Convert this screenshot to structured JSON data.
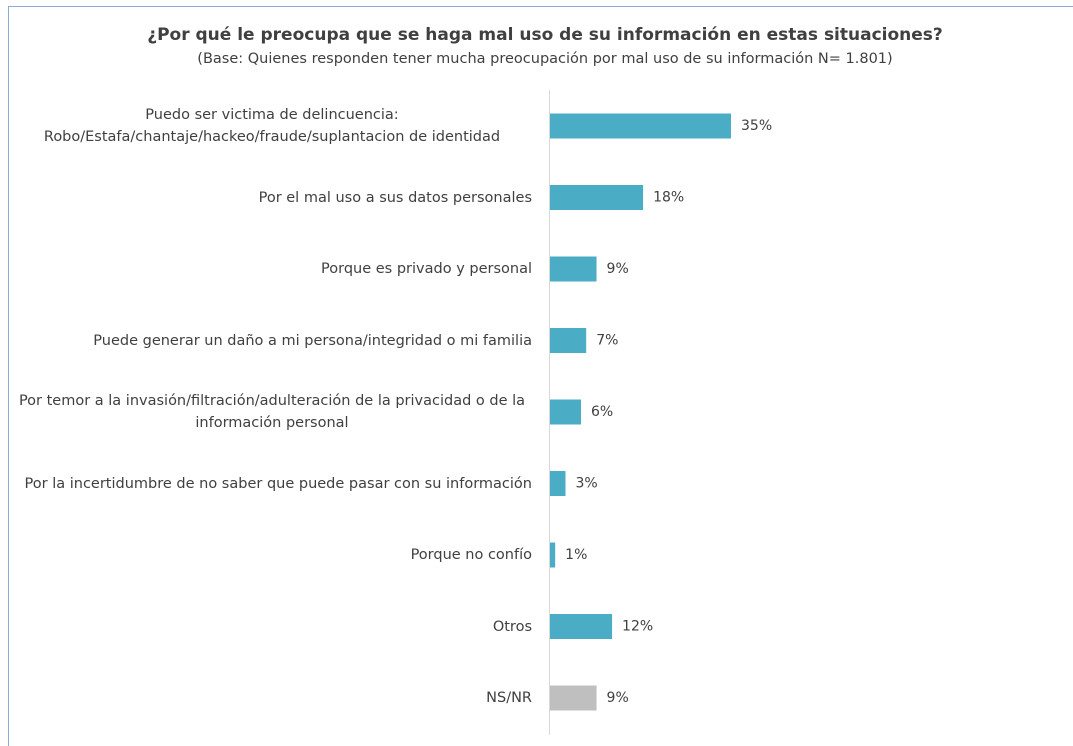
{
  "chart_data": {
    "type": "bar",
    "orientation": "horizontal",
    "title": "¿Por qué le preocupa que se haga mal uso de su información en estas situaciones?",
    "subtitle": "(Base: Quienes responden tener mucha preocupación por mal uso de su información N= 1.801)",
    "categories": [
      "Puedo ser victima de delincuencia: Robo/Estafa/chantaje/hackeo/fraude/suplantacion de identidad",
      "Por el mal uso a sus datos personales",
      "Porque es privado y personal",
      "Puede generar un daño a mi persona/integridad o mi familia",
      "Por temor a la invasión/filtración/adulteración de la privacidad o de la información personal",
      "Por la incertidumbre de no saber que puede pasar con su información",
      "Porque no confío",
      "Otros",
      "NS/NR"
    ],
    "values": [
      35,
      18,
      9,
      7,
      6,
      3,
      1,
      12,
      9
    ],
    "value_labels": [
      "35%",
      "18%",
      "9%",
      "7%",
      "6%",
      "3%",
      "1%",
      "12%",
      "9%"
    ],
    "colors": [
      "#4bacc6",
      "#4bacc6",
      "#4bacc6",
      "#4bacc6",
      "#4bacc6",
      "#4bacc6",
      "#4bacc6",
      "#4bacc6",
      "#bfbfbf"
    ]
  }
}
